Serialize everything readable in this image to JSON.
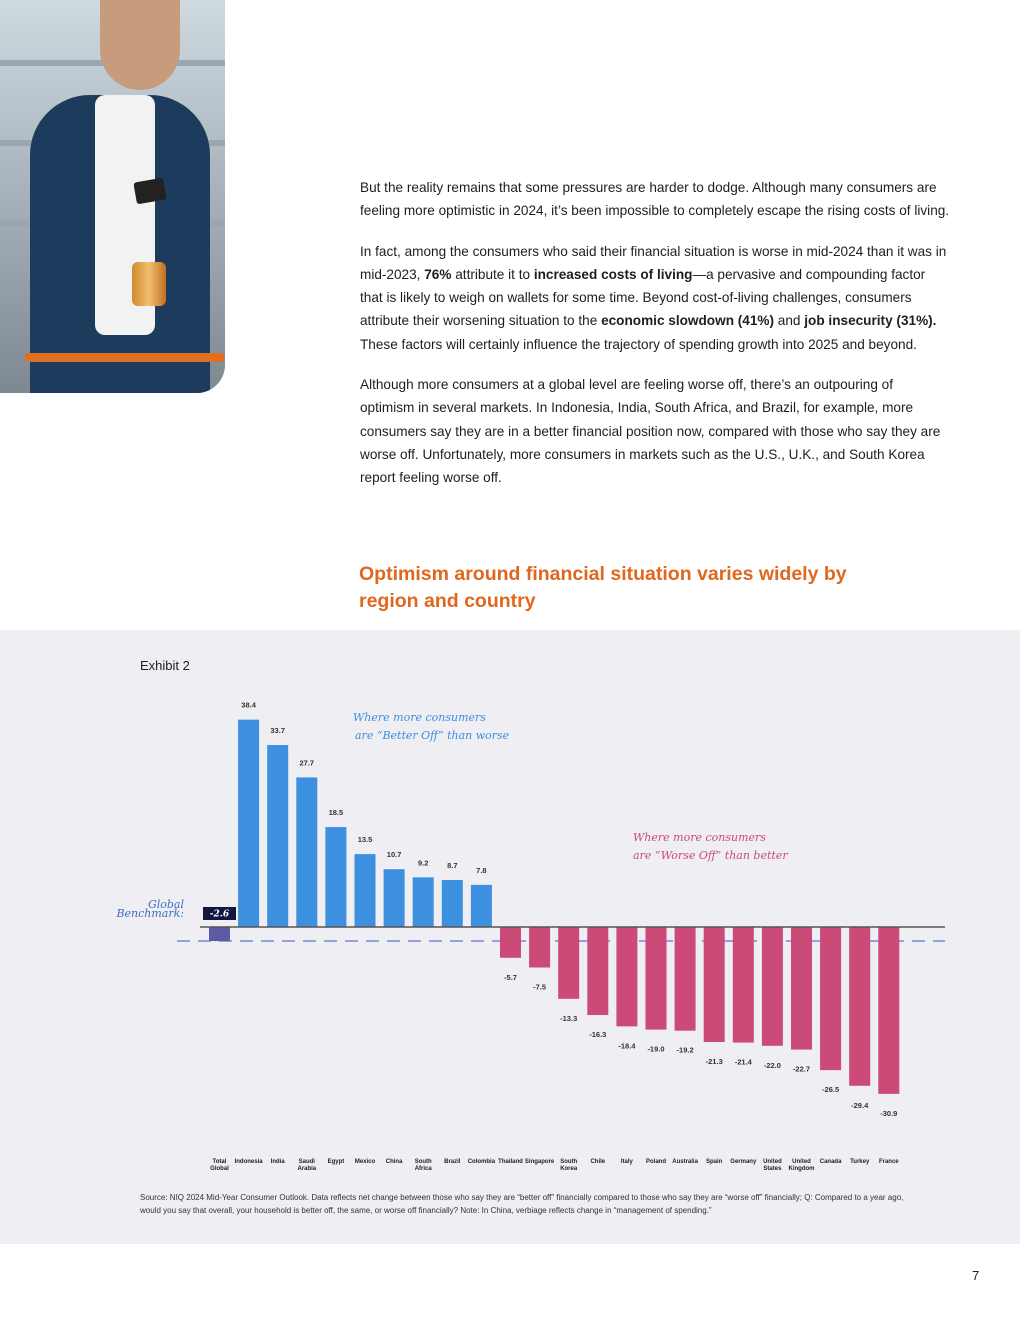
{
  "page_number": "7",
  "paragraphs": [
    "But the reality remains that some pressures are harder to dodge. Although many consumers are feeling more optimistic in 2024, it’s been impossible to completely escape the rising costs of living.",
    "Although more consumers at a global level are feeling worse off, there’s an outpouring of optimism in several markets. In Indonesia, India, South Africa, and Brazil, for example, more consumers say they are in a better financial position now, compared with those who say they are worse off. Unfortunately, more consumers in markets such as the U.S., U.K., and South Korea report feeling worse off."
  ],
  "paragraph2": {
    "t1": "In fact, among the consumers who said their financial situation is worse in mid-2024 than it was in mid-2023, ",
    "b1": "76%",
    "t2": " attribute it to ",
    "b2": "increased costs of living",
    "t3": "—a pervasive and compounding factor that is likely to weigh on wallets for some time. Beyond cost-of-living challenges, consumers attribute their worsening situation to the ",
    "b3": "economic slowdown (41%)",
    "t4": " and ",
    "b4": "job insecurity (31%).",
    "t5": " These factors will certainly influence the trajectory of spending growth into 2025 and beyond."
  },
  "heading": "Optimism around financial situation varies widely by region and country",
  "exhibit_label": "Exhibit 2",
  "source_note": "Source: NIQ 2024 Mid-Year Consumer Outlook. Data reflects net change between those who say they are “better off” financially compared to those who say they are “worse off” financially; Q: Compared to a year ago, would you say that overall, your household is better off, the same, or worse off financially? Note: In China, verbiage reflects change in “management of spending.”",
  "chart_data": {
    "type": "bar",
    "categories": [
      "Total Global",
      "Indonesia",
      "India",
      "Saudi Arabia",
      "Egypt",
      "Mexico",
      "China",
      "South Africa",
      "Brazil",
      "Colombia",
      "Thailand",
      "Singapore",
      "South Korea",
      "Chile",
      "Italy",
      "Poland",
      "Australia",
      "Spain",
      "Germany",
      "United States",
      "United Kingdom",
      "Canada",
      "Turkey",
      "France"
    ],
    "values": [
      -2.6,
      38.4,
      33.7,
      27.7,
      18.5,
      13.5,
      10.7,
      9.2,
      8.7,
      7.8,
      -5.7,
      -7.5,
      -13.3,
      -16.3,
      -18.4,
      -19.0,
      -19.2,
      -21.3,
      -21.4,
      -22.0,
      -22.7,
      -26.5,
      -29.4,
      -30.9
    ],
    "value_labels": [
      "-2.6",
      "38.4",
      "33.7",
      "27.7",
      "18.5",
      "13.5",
      "10.7",
      "9.2",
      "8.7",
      "7.8",
      "-5.7",
      "-7.5",
      "-13.3",
      "-16.3",
      "-18.4",
      "-19.0",
      "-19.2",
      "-21.3",
      "-21.4",
      "-22.0",
      "-22.7",
      "-26.5",
      "-29.4",
      "-30.9"
    ],
    "benchmark_value": -2.6,
    "benchmark_label": "Global Benchmark:",
    "annotation_positive": [
      "Where more consumers",
      "are “Better Off” than worse"
    ],
    "annotation_negative": [
      "Where more consumers",
      "are “Worse Off” than better"
    ],
    "colors": {
      "positive": "#3d8fe0",
      "negative": "#cc4a78",
      "global": "#5e5aa3",
      "benchmark_line": "#3355cc"
    },
    "ylim": [
      -33,
      41
    ],
    "grid": false
  }
}
